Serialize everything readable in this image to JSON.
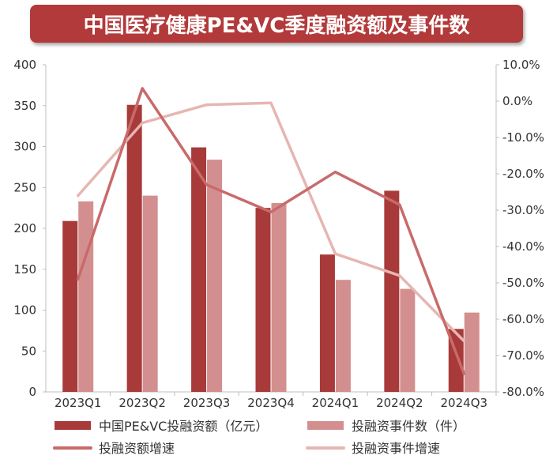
{
  "title": "中国医疗健康PE&VC季度融资额及事件数",
  "chart_data": {
    "type": "bar",
    "title": "中国医疗健康PE&VC季度融资额及事件数",
    "categories": [
      "2023Q1",
      "2023Q2",
      "2023Q3",
      "2023Q4",
      "2024Q1",
      "2024Q2",
      "2024Q3"
    ],
    "ylim": [
      0,
      400
    ],
    "y_ticks": [
      "0",
      "50",
      "100",
      "150",
      "200",
      "250",
      "300",
      "350",
      "400"
    ],
    "y2lim": [
      -80,
      10
    ],
    "y2_ticks": [
      "-80.0%",
      "-70.0%",
      "-60.0%",
      "-50.0%",
      "-40.0%",
      "-30.0%",
      "-20.0%",
      "-10.0%",
      "0.0%",
      "10.0%"
    ],
    "grid": false,
    "legend_position": "bottom",
    "series": [
      {
        "name": "中国PE&VC投融资额（亿元）",
        "type": "bar",
        "axis": "left",
        "color": "#a83a3a",
        "values": [
          209,
          351,
          299,
          225,
          168,
          246,
          77
        ]
      },
      {
        "name": "投融资事件数（件）",
        "type": "bar",
        "axis": "left",
        "color": "#d38f8f",
        "values": [
          233,
          240,
          284,
          231,
          137,
          126,
          97
        ]
      },
      {
        "name": "投融资额增速",
        "type": "line",
        "axis": "right",
        "color": "#c96a6a",
        "values": [
          -49,
          3.5,
          -23,
          -30.5,
          -19.5,
          -28.5,
          -75
        ]
      },
      {
        "name": "投融资事件增速",
        "type": "line",
        "axis": "right",
        "color": "#e6b6b2",
        "values": [
          -26,
          -6,
          -1,
          -0.5,
          -42,
          -48,
          -66
        ]
      }
    ]
  }
}
